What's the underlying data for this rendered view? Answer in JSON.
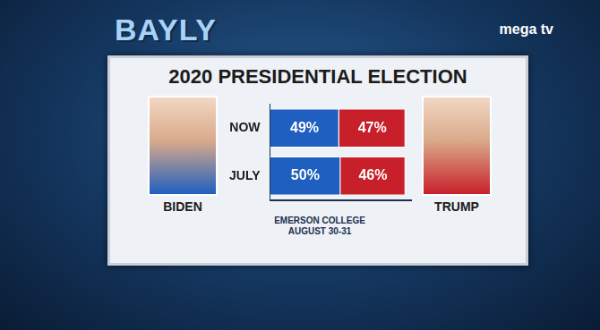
{
  "chart_data": {
    "type": "bar",
    "title": "2020 PRESIDENTIAL ELECTION",
    "orientation": "horizontal",
    "stacked": true,
    "grid": false,
    "data_labels": true,
    "tick_labels": "y",
    "categories": [
      "NOW",
      "JULY"
    ],
    "xlim": [
      0,
      100
    ],
    "series": [
      {
        "name": "BIDEN",
        "color": "#1f5fbf",
        "values": [
          49,
          50
        ],
        "value_labels": [
          "49%",
          "50%"
        ]
      },
      {
        "name": "TRUMP",
        "color": "#c8202a",
        "values": [
          47,
          46
        ],
        "value_labels": [
          "47%",
          "46%"
        ]
      }
    ],
    "source": [
      "EMERSON COLLEGE",
      "AUGUST 30-31"
    ]
  },
  "logos": [
    "BAYLY",
    "mega tv"
  ]
}
